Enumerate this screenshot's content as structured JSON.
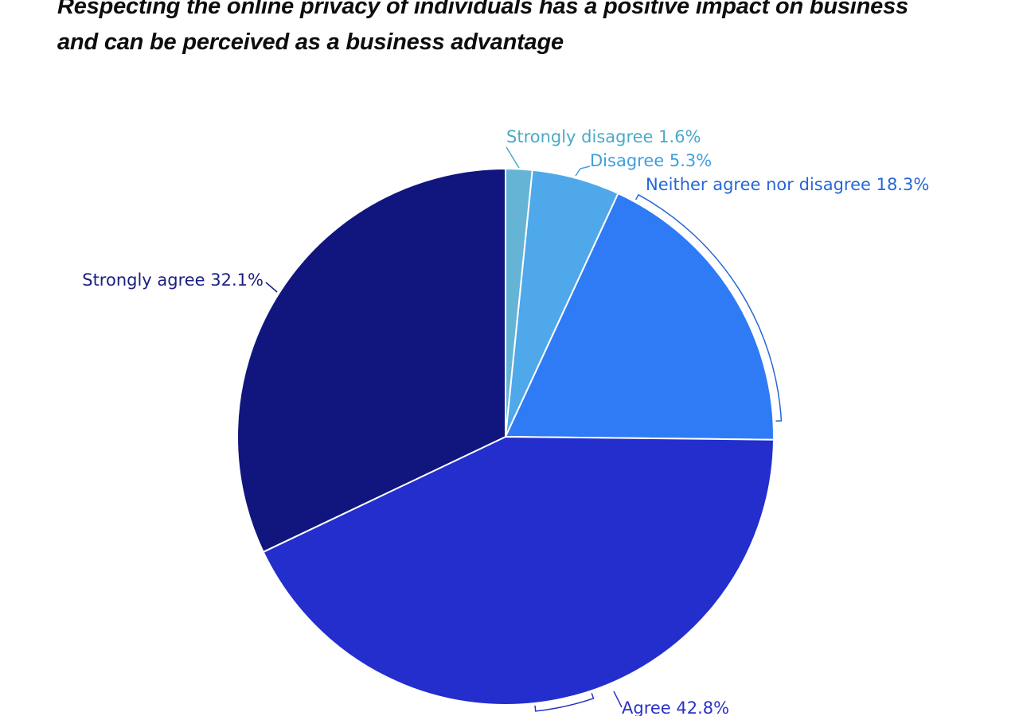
{
  "title_line1": "Respecting the online privacy of individuals has a positive impact on business",
  "title_line2": "and can be perceived as a business advantage",
  "chart_data": {
    "type": "pie",
    "title": "Respecting the online privacy of individuals has a positive impact on business and can be perceived as a business advantage",
    "start": "12 o'clock",
    "direction": "clockwise",
    "slices": [
      {
        "label": "Strongly disagree",
        "value": 1.6,
        "display": "Strongly disagree 1.6%",
        "color": "#65b4d6",
        "label_color": "#4aaac8"
      },
      {
        "label": "Disagree",
        "value": 5.3,
        "display": "Disagree 5.3%",
        "color": "#4ea8ea",
        "label_color": "#3f9fe0"
      },
      {
        "label": "Neither agree nor disagree",
        "value": 18.3,
        "display": "Neither agree nor disagree 18.3%",
        "color": "#2f7bf5",
        "label_color": "#2567d8"
      },
      {
        "label": "Agree",
        "value": 42.8,
        "display": "Agree 42.8%",
        "color": "#232ecc",
        "label_color": "#2a31c6"
      },
      {
        "label": "Strongly agree",
        "value": 32.1,
        "display": "Strongly agree 32.1%",
        "color": "#11167e",
        "label_color": "#1a1f7e"
      }
    ]
  }
}
